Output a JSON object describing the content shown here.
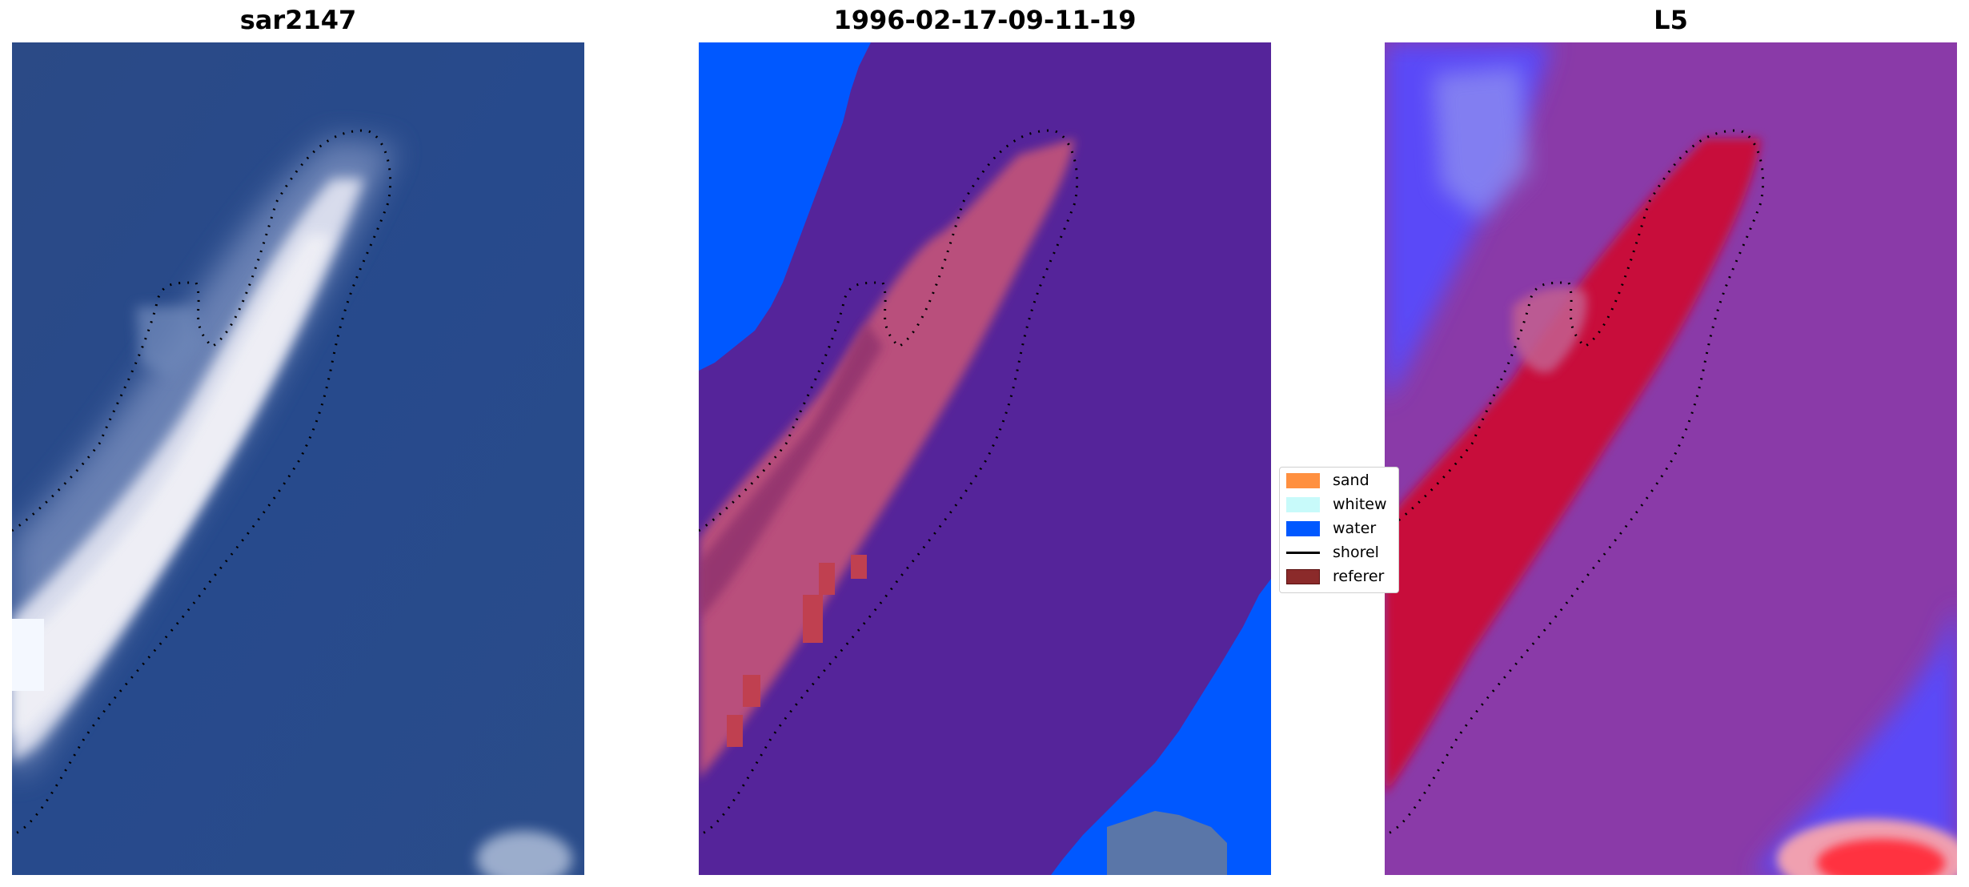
{
  "panels": [
    {
      "title": "sar2147"
    },
    {
      "title": "1996-02-17-09-11-19"
    },
    {
      "title": "L5"
    }
  ],
  "legend": {
    "items": [
      {
        "label": "sand",
        "color": "#ff9040"
      },
      {
        "label": "whitew",
        "color": "#c8fafa"
      },
      {
        "label": "water",
        "color": "#0058ff"
      },
      {
        "label": "shorel",
        "color": "#000000"
      },
      {
        "label": "referer",
        "color": "#8b2a2a"
      }
    ]
  },
  "colors": {
    "sea_rgb": "#2a4a88",
    "class_background": "#55249a",
    "class_water": "#0058ff",
    "class_sand": "#c84a6a",
    "index_background": "#8a3aa8",
    "index_low": "#5a4af8",
    "index_high": "#c8102e"
  }
}
